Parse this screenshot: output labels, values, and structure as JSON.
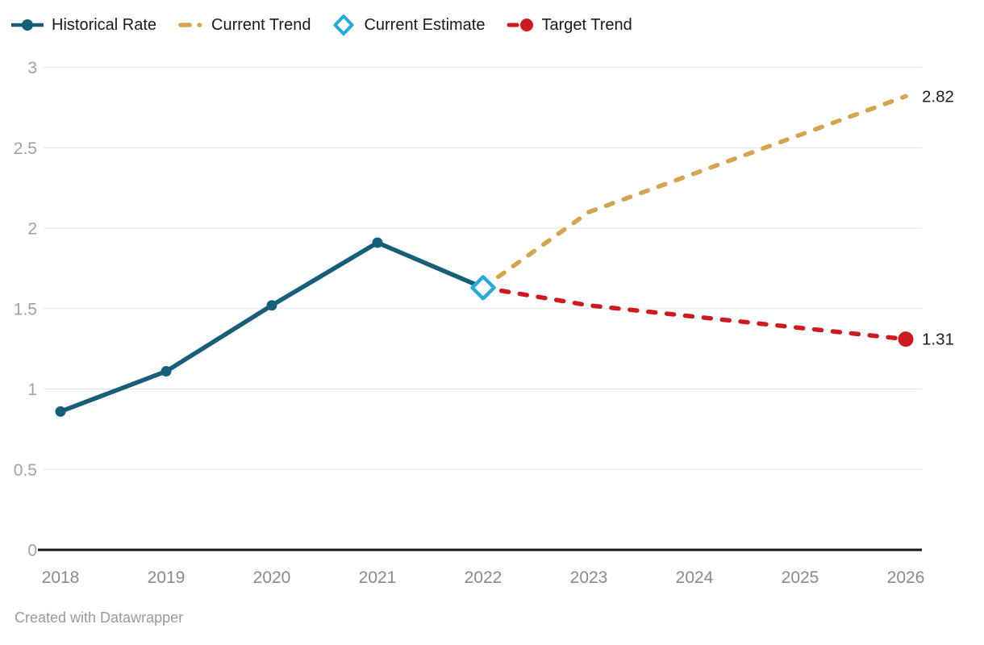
{
  "legend": {
    "items": [
      {
        "label": "Historical Rate",
        "marker": "line-with-dot",
        "color": "#175e78"
      },
      {
        "label": "Current Trend",
        "marker": "dashes",
        "color": "#d4a44f"
      },
      {
        "label": "Current Estimate",
        "marker": "diamond",
        "color": "#29aadc"
      },
      {
        "label": "Target Trend",
        "marker": "dash-with-dot",
        "color": "#ce1a1e"
      }
    ]
  },
  "footer": {
    "credit": "Created with Datawrapper"
  },
  "chart_data": {
    "type": "line",
    "title": "",
    "xlabel": "",
    "ylabel": "",
    "x_ticks": [
      2018,
      2019,
      2020,
      2021,
      2022,
      2023,
      2024,
      2025,
      2026
    ],
    "y_ticks": {
      "values": [
        0,
        0.5,
        1,
        1.5,
        2,
        2.5,
        3
      ],
      "labels": [
        "0",
        "0.5",
        "1",
        "1.5",
        "2",
        "2.5",
        "3"
      ]
    },
    "xlim": [
      2018,
      2026
    ],
    "ylim": [
      0,
      3
    ],
    "grid": true,
    "legend_position": "top",
    "series": [
      {
        "name": "Current Trend",
        "color": "#d4a44f",
        "style": "dashed",
        "x": [
          2022,
          2023,
          2024,
          2025,
          2026
        ],
        "values": [
          1.63,
          2.1,
          2.34,
          2.58,
          2.82
        ],
        "end_label": "2.82"
      },
      {
        "name": "Target Trend",
        "color": "#ce1a1e",
        "style": "dashed",
        "x": [
          2022,
          2023,
          2024,
          2025,
          2026
        ],
        "values": [
          1.63,
          1.52,
          1.45,
          1.38,
          1.31
        ],
        "end_label": "1.31",
        "end_marker": "dot"
      },
      {
        "name": "Historical Rate",
        "color": "#175e78",
        "style": "solid",
        "x": [
          2018,
          2019,
          2020,
          2021,
          2022
        ],
        "values": [
          0.86,
          1.11,
          1.52,
          1.91,
          1.63
        ],
        "markers": "dot",
        "marker_skip_last": true
      },
      {
        "name": "Current Estimate",
        "color": "#29aadc",
        "style": "marker-only",
        "marker": "diamond",
        "x": [
          2022
        ],
        "values": [
          1.63
        ]
      }
    ],
    "end_label_color": "#1d1d1d",
    "axis_color": "#161616",
    "grid_color": "#e2e2e2",
    "y_tick_color": "#a2a2a2",
    "x_tick_color": "#8a8a8a"
  }
}
